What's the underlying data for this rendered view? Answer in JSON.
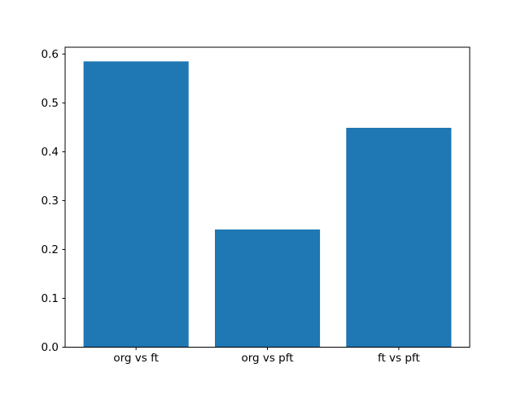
{
  "figure": {
    "background_color": "#ffffff"
  },
  "chart_data": {
    "type": "bar",
    "title": "",
    "xlabel": "",
    "ylabel": "",
    "categories": [
      "org vs ft",
      "org vs pft",
      "ft vs pft"
    ],
    "values": [
      0.585,
      0.241,
      0.449
    ],
    "yticks": [
      0.0,
      0.1,
      0.2,
      0.3,
      0.4,
      0.5,
      0.6
    ],
    "ytick_labels": [
      "0.0",
      "0.1",
      "0.2",
      "0.3",
      "0.4",
      "0.5",
      "0.6"
    ],
    "ylim": [
      0,
      0.614
    ],
    "bar_color": "#1f77b4",
    "axis_color": "#000000",
    "text_color": "#000000",
    "grid": false,
    "legend": null
  }
}
